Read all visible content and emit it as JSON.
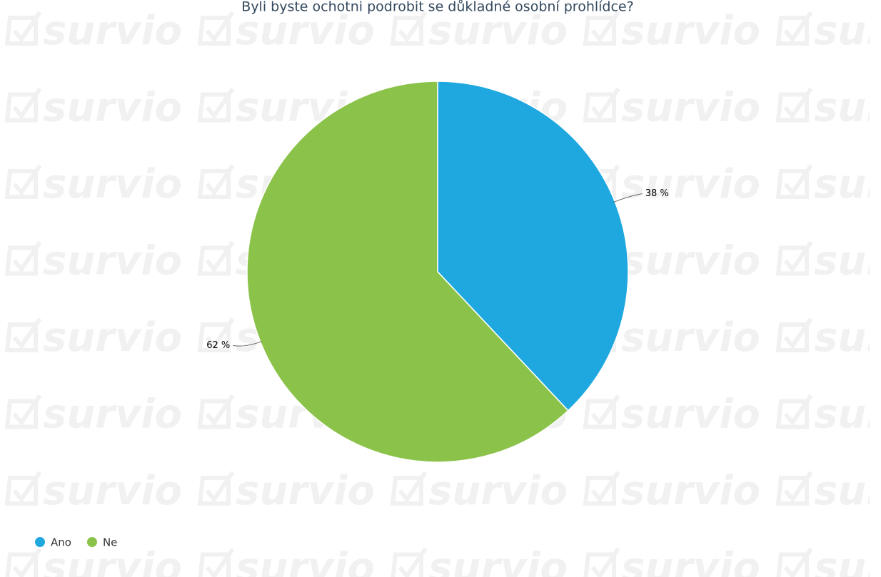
{
  "watermark": "survio",
  "chart_data": {
    "type": "pie",
    "title": "Byli byste ochotni podrobit se důkladné osobní prohlídce?",
    "categories": [
      "Ano",
      "Ne"
    ],
    "values": [
      38,
      62
    ],
    "value_labels": [
      "38 %",
      "62 %"
    ],
    "colors": [
      "#1fa8df",
      "#8bc34a"
    ],
    "legend": "bottom-left"
  }
}
